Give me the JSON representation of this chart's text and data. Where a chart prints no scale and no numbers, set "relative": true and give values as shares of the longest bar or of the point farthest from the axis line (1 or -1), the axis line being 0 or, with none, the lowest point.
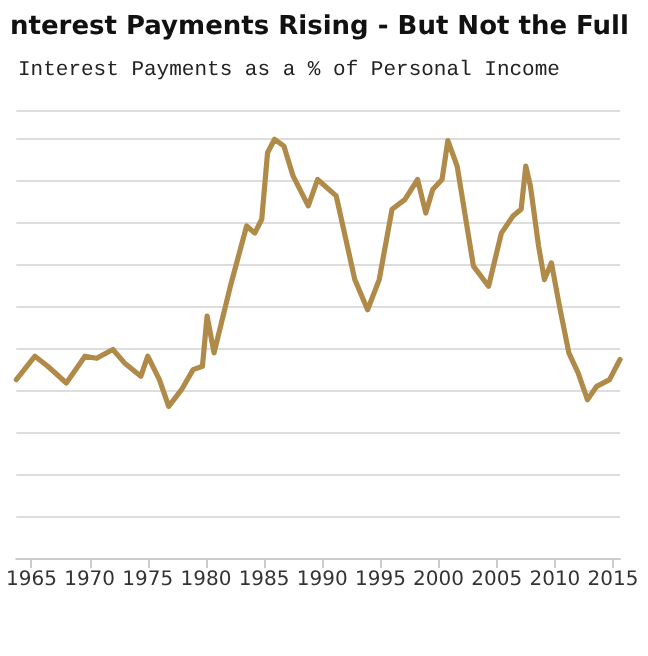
{
  "chart_data": {
    "type": "line",
    "title": "nterest Payments Rising - But Not the Full",
    "subtitle": "Interest Payments as a % of Personal Income",
    "relative": true,
    "grid": "y",
    "marker": "none",
    "line_style": "solid",
    "xlim": [
      1963.7,
      2015.6
    ],
    "xticks": [
      1965,
      1970,
      1975,
      1980,
      1985,
      1990,
      1995,
      2000,
      2005,
      2010,
      2015
    ],
    "series": [
      {
        "color": "#b08a48",
        "x": [
          1963.7,
          1965.3,
          1966.4,
          1968,
          1969.6,
          1970.6,
          1972,
          1973,
          1974.4,
          1975,
          1976,
          1976.8,
          1977.9,
          1978.9,
          1979.7,
          1980.1,
          1980.7,
          1982.1,
          1983.5,
          1984.2,
          1984.8,
          1985.3,
          1985.9,
          1986.7,
          1987.5,
          1988.8,
          1989.6,
          1991.2,
          1992.8,
          1993.9,
          1994.9,
          1996,
          1997.1,
          1998.2,
          1998.9,
          1999.5,
          2000.3,
          2000.8,
          2001.6,
          2003,
          2004.3,
          2005.4,
          2006.4,
          2007.1,
          2007.5,
          2007.9,
          2008.6,
          2009.1,
          2009.7,
          2010.4,
          2011.2,
          2012,
          2012.8,
          2013.6,
          2014.7,
          2015.6
        ],
        "values": [
          0.426,
          0.482,
          0.458,
          0.418,
          0.482,
          0.477,
          0.498,
          0.466,
          0.434,
          0.482,
          0.426,
          0.362,
          0.402,
          0.45,
          0.458,
          0.578,
          0.49,
          0.649,
          0.793,
          0.776,
          0.809,
          0.968,
          1.0,
          0.984,
          0.912,
          0.841,
          0.904,
          0.865,
          0.665,
          0.593,
          0.665,
          0.833,
          0.856,
          0.904,
          0.824,
          0.88,
          0.904,
          0.997,
          0.936,
          0.697,
          0.649,
          0.776,
          0.817,
          0.833,
          0.936,
          0.888,
          0.745,
          0.665,
          0.705,
          0.601,
          0.49,
          0.442,
          0.378,
          0.41,
          0.426,
          0.474
        ]
      }
    ]
  }
}
